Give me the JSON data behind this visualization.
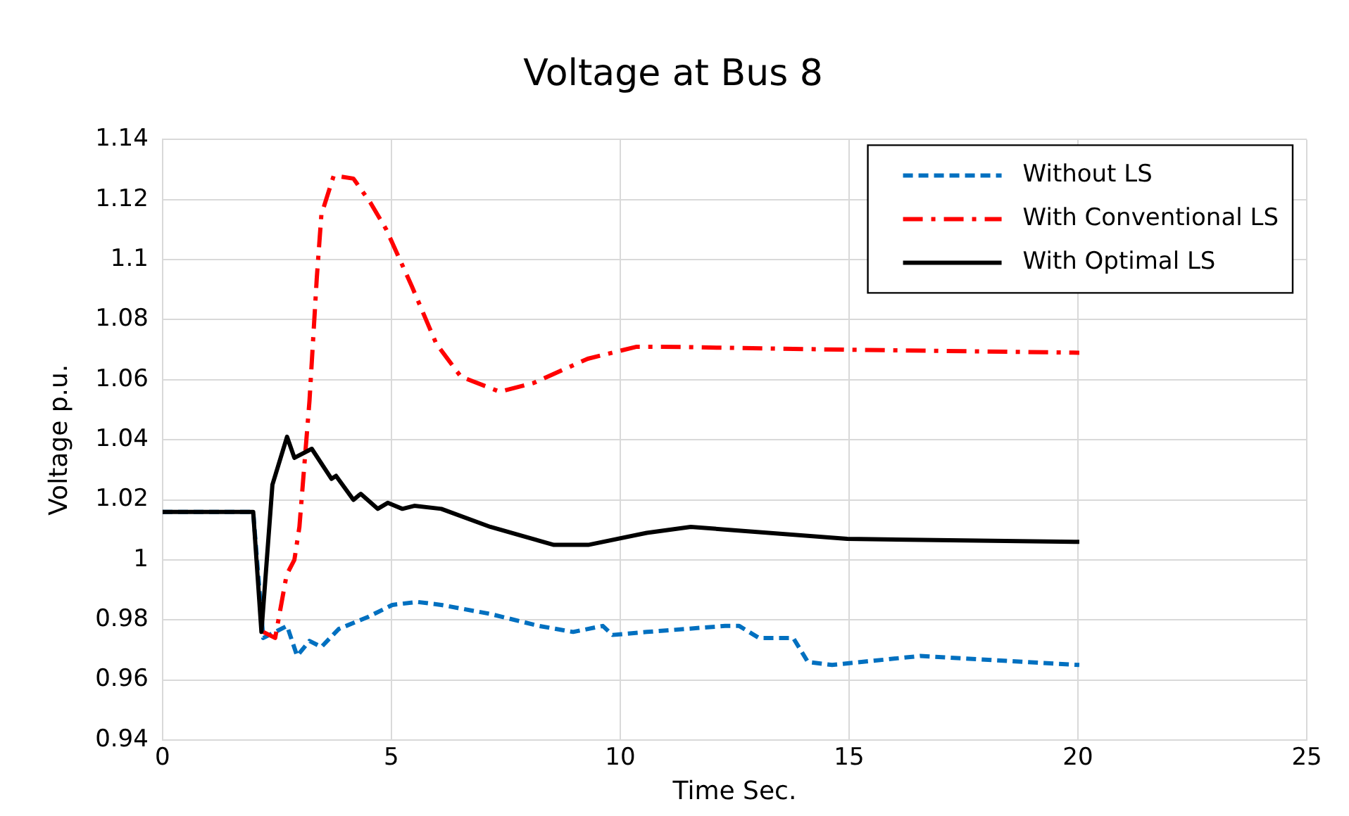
{
  "chart_data": {
    "type": "line",
    "title": "Voltage at Bus 8",
    "xlabel": "Time Sec.",
    "ylabel": "Voltage p.u.",
    "xlim": [
      0,
      25
    ],
    "xticks": [
      0,
      5,
      10,
      15,
      20,
      25
    ],
    "ylim": [
      0.94,
      1.14
    ],
    "yticks": [
      0.94,
      0.96,
      0.98,
      1,
      1.02,
      1.04,
      1.06,
      1.08,
      1.1,
      1.12,
      1.14
    ],
    "grid": true,
    "legend": "top right",
    "marker": "none",
    "series": [
      {
        "name": "Without LS",
        "color": "#0070c0",
        "line_style": "dashed",
        "x": [
          0,
          1.98,
          2.2,
          2.72,
          2.94,
          3.21,
          3.47,
          3.85,
          4.49,
          5.02,
          5.56,
          6.09,
          7.16,
          8.23,
          8.97,
          9.62,
          9.83,
          10.58,
          12.29,
          12.6,
          13.03,
          13.78,
          14.1,
          14.63,
          16.56,
          20.03
        ],
        "values": [
          1.016,
          1.016,
          0.974,
          0.978,
          0.968,
          0.973,
          0.971,
          0.977,
          0.981,
          0.985,
          0.986,
          0.985,
          0.982,
          0.978,
          0.976,
          0.978,
          0.975,
          0.976,
          0.978,
          0.978,
          0.974,
          0.974,
          0.966,
          0.965,
          0.968,
          0.965
        ]
      },
      {
        "name": "With Conventional LS",
        "color": "#ff0000",
        "line_style": "dashdot",
        "x": [
          2.2,
          2.46,
          2.71,
          2.88,
          2.99,
          3.21,
          3.37,
          3.47,
          3.74,
          4.17,
          4.54,
          4.89,
          5.45,
          5.98,
          6.52,
          7.37,
          8.12,
          9.29,
          10.36,
          10.9,
          14.96,
          20.03
        ],
        "values": [
          0.976,
          0.974,
          0.995,
          1.0,
          1.011,
          1.053,
          1.094,
          1.115,
          1.128,
          1.127,
          1.119,
          1.11,
          1.091,
          1.072,
          1.061,
          1.056,
          1.059,
          1.067,
          1.071,
          1.071,
          1.07,
          1.069
        ]
      },
      {
        "name": "With Optimal LS",
        "color": "#000000",
        "line_style": "solid",
        "x": [
          0,
          1.98,
          2.16,
          2.4,
          2.72,
          2.88,
          3.26,
          3.69,
          3.79,
          4.17,
          4.33,
          4.7,
          4.92,
          5.24,
          5.5,
          6.09,
          7.16,
          8.55,
          9.3,
          10.58,
          11.54,
          14.96,
          20.03
        ],
        "values": [
          1.016,
          1.016,
          0.976,
          1.025,
          1.041,
          1.034,
          1.037,
          1.027,
          1.028,
          1.02,
          1.022,
          1.017,
          1.019,
          1.017,
          1.018,
          1.017,
          1.011,
          1.005,
          1.005,
          1.009,
          1.011,
          1.007,
          1.006
        ]
      }
    ]
  }
}
